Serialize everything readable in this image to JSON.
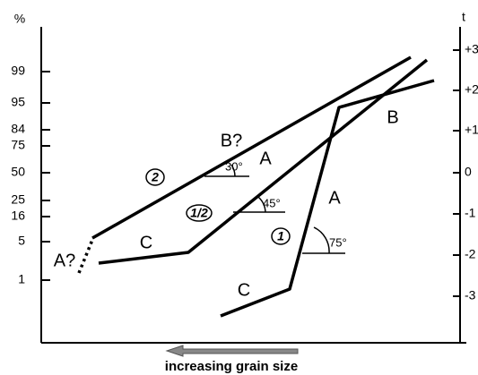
{
  "left_axis": {
    "title": "%",
    "labels": [
      "99",
      "95",
      "84",
      "75",
      "50",
      "25",
      "16",
      "5",
      "1"
    ]
  },
  "right_axis": {
    "title": "t",
    "labels": [
      "+3",
      "+2",
      "+1",
      "0",
      "-1",
      "-2",
      "-3"
    ]
  },
  "segment_labels": [
    "A?",
    "C",
    "B?",
    "A",
    "A",
    "C",
    "B"
  ],
  "circled_labels": [
    "2",
    "1/2",
    "1"
  ],
  "angles": [
    "30°",
    "45°",
    "75°"
  ],
  "caption": "increasing  grain size"
}
